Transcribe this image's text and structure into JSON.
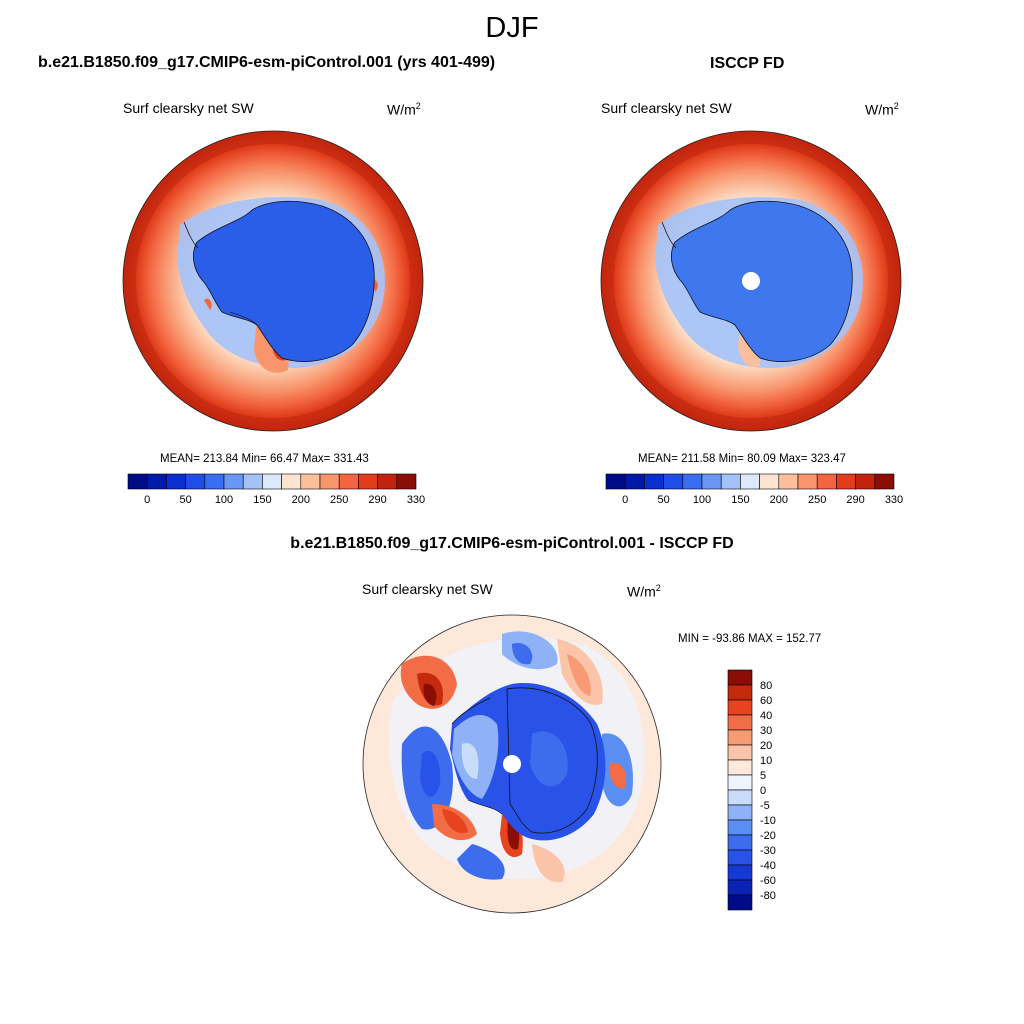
{
  "figure": {
    "title": "DJF",
    "diff_title": "b.e21.B1850.f09_g17.CMIP6-esm-piControl.001 - ISCCP FD"
  },
  "panels": [
    {
      "case_title": "b.e21.B1850.f09_g17.CMIP6-esm-piControl.001 (yrs 401-499)",
      "variable": "Surf clearsky net SW",
      "units_base": "W/m",
      "units_exp": "2",
      "stats_text": "MEAN= 213.84  Min=  66.47  Max= 331.43"
    },
    {
      "case_title": "ISCCP FD",
      "variable": "Surf clearsky net SW",
      "units_base": "W/m",
      "units_exp": "2",
      "stats_text": "MEAN= 211.58  Min=  80.09  Max= 323.47"
    },
    {
      "variable": "Surf clearsky net SW",
      "units_base": "W/m",
      "units_exp": "2",
      "stats_text": "MIN = -93.86 MAX = 152.77"
    }
  ],
  "colors": {
    "abs": [
      "#000b8a",
      "#001aa8",
      "#0a2fcc",
      "#1f4ee6",
      "#3a6ef0",
      "#6a97f5",
      "#a5c2f8",
      "#dce8fb",
      "#fde4d0",
      "#fbbf9e",
      "#f8956d",
      "#f26540",
      "#e03d1c",
      "#c0240c",
      "#8c0d05"
    ],
    "diff": [
      "#000b8a",
      "#0a23b4",
      "#1439d4",
      "#2952e8",
      "#3d6ded",
      "#5b8ef2",
      "#8fb2f6",
      "#c9dcfa",
      "#eef3fd",
      "#fde8da",
      "#fbc4a8",
      "#f89a74",
      "#f26d46",
      "#e6431e",
      "#c32b0c",
      "#8c0d05"
    ],
    "land_model": "#2a5ee8",
    "land_obs": "#3f78ee",
    "ocean_diff_bg": "#fde8da"
  },
  "chart_data": [
    {
      "type": "heatmap",
      "title": "b.e21.B1850.f09_g17.CMIP6-esm-piControl.001 (yrs 401-499)",
      "variable": "Surf clearsky net SW",
      "units": "W/m2",
      "projection": "south-polar-stereographic",
      "mean": 213.84,
      "min": 66.47,
      "max": 331.43,
      "colorbar_levels": [
        0,
        25,
        50,
        75,
        100,
        125,
        150,
        175,
        200,
        225,
        250,
        270,
        290,
        310,
        330
      ],
      "colorbar_labels": [
        "0",
        "50",
        "100",
        "150",
        "200",
        "250",
        "290",
        "330"
      ],
      "colorbar_orientation": "horizontal"
    },
    {
      "type": "heatmap",
      "title": "ISCCP FD",
      "variable": "Surf clearsky net SW",
      "units": "W/m2",
      "projection": "south-polar-stereographic",
      "mean": 211.58,
      "min": 80.09,
      "max": 323.47,
      "colorbar_levels": [
        0,
        25,
        50,
        75,
        100,
        125,
        150,
        175,
        200,
        225,
        250,
        270,
        290,
        310,
        330
      ],
      "colorbar_labels": [
        "0",
        "50",
        "100",
        "150",
        "200",
        "250",
        "290",
        "330"
      ],
      "colorbar_orientation": "horizontal"
    },
    {
      "type": "heatmap",
      "title": "b.e21.B1850.f09_g17.CMIP6-esm-piControl.001 - ISCCP FD",
      "variable": "Surf clearsky net SW",
      "units": "W/m2",
      "projection": "south-polar-stereographic",
      "min": -93.86,
      "max": 152.77,
      "colorbar_levels": [
        80,
        60,
        40,
        30,
        20,
        10,
        5,
        0,
        -5,
        -10,
        -20,
        -30,
        -40,
        -60,
        -80
      ],
      "colorbar_labels": [
        "80",
        "60",
        "40",
        "30",
        "20",
        "10",
        "5",
        "0",
        "-5",
        "-10",
        "-20",
        "-30",
        "-40",
        "-60",
        "-80"
      ],
      "colorbar_orientation": "vertical"
    }
  ]
}
